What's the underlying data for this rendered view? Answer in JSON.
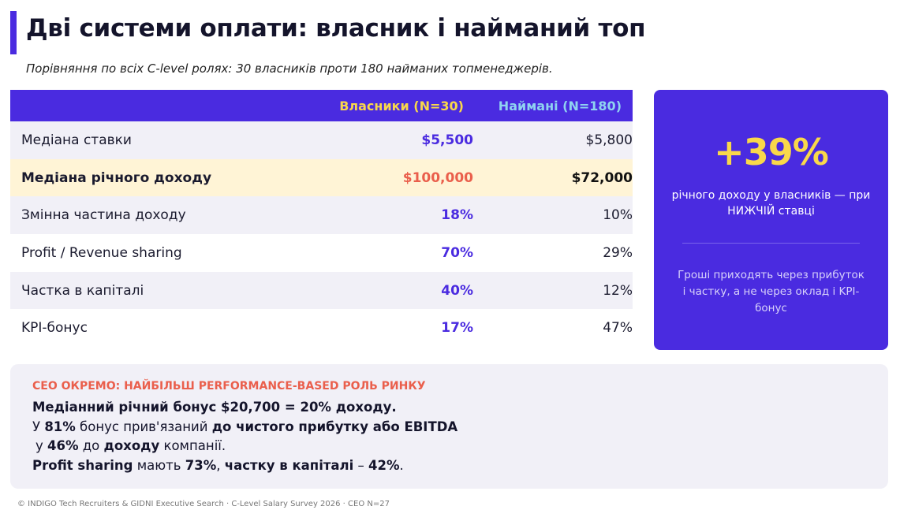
{
  "title": "Дві системи оплати: власник і найманий топ",
  "subtitle": "Порівняння по всіх C-level ролях: 30 власників проти 180 найманих топменеджерів.",
  "table": {
    "headers": [
      "",
      "Власники (N=30)",
      "Наймані (N=180)"
    ],
    "rows": [
      {
        "label": "Медіана ставки",
        "owners": "$5,500",
        "hired": "$5,800"
      },
      {
        "label": "Медіана річного доходу",
        "owners": "$100,000",
        "hired": "$72,000"
      },
      {
        "label": "Змінна частина доходу",
        "owners": "18%",
        "hired": "10%"
      },
      {
        "label": "Profit / Revenue sharing",
        "owners": "70%",
        "hired": "29%"
      },
      {
        "label": "Частка в капіталі",
        "owners": "40%",
        "hired": "12%"
      },
      {
        "label": "KPI-бонус",
        "owners": "17%",
        "hired": "47%"
      }
    ]
  },
  "card": {
    "big": "+39%",
    "desc": "річного доходу у власників — при НИЖЧІЙ ставці",
    "note": "Гроші приходять через прибуток і частку, а не через оклад і KPI-бонус"
  },
  "panel": {
    "title": "CEO ОКРЕМО: НАЙБІЛЬШ PERFORMANCE-BASED РОЛЬ РИНКУ",
    "line1": "Медіанний річний бонус $20,700 = 20% доходу.",
    "line2": {
      "a": "У ",
      "b": "81%",
      "c": " бонус прив'язаний ",
      "d": "до чистого прибутку або EBITDA"
    },
    "line3": {
      "a": "у ",
      "b": "46%",
      "c": "  до ",
      "d": "доходу",
      "e": " компанії."
    },
    "line4": {
      "a": "Profit sharing",
      "b": " мають ",
      "c": "73%",
      "d": ", ",
      "e": "частку в капіталі",
      "f": "  – ",
      "g": "42%",
      "h": "."
    }
  },
  "footer": "© INDIGO Tech Recruiters & GIDNI Executive Search · C-Level Salary Survey 2026 · CEO N=27",
  "colors": {
    "accent": "#4a2be0",
    "yellow": "#f9d84a",
    "coral": "#ea5f4c",
    "sky": "#8fd3f0"
  }
}
